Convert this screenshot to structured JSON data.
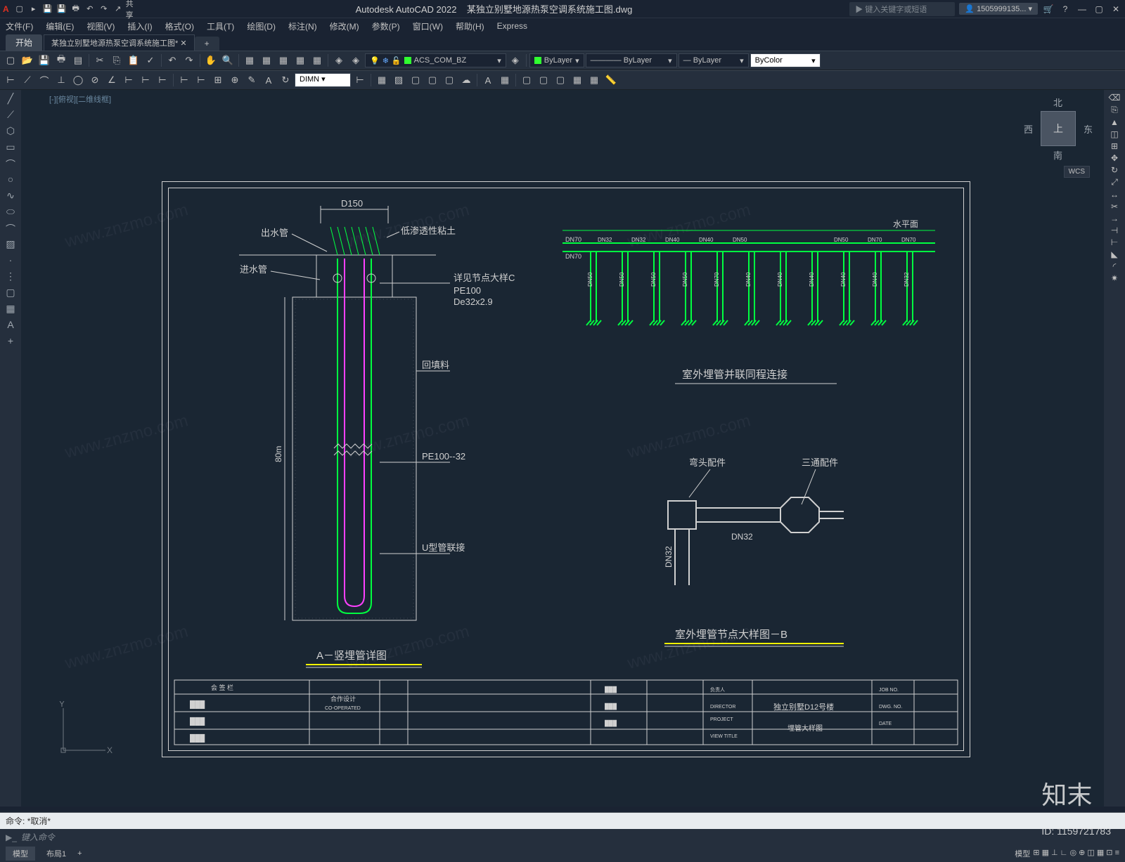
{
  "app": {
    "title": "Autodesk AutoCAD 2022",
    "filename": "某独立别墅地源热泵空调系统施工图.dwg",
    "share": "共享",
    "search_placeholder": "键入关键字或短语",
    "user": "1505999135...",
    "tab_start": "开始",
    "filetab": "某独立别墅地源热泵空调系统施工图*",
    "cmd_prefix": "命令:",
    "cmd_text": "*取消*",
    "cmd_input": "键入命令",
    "model_tab": "模型",
    "layout_tab": "布局1",
    "view_label": "[-][俯视][二维线框]"
  },
  "menus": [
    "文件(F)",
    "编辑(E)",
    "视图(V)",
    "插入(I)",
    "格式(O)",
    "工具(T)",
    "绘图(D)",
    "标注(N)",
    "修改(M)",
    "参数(P)",
    "窗口(W)",
    "帮助(H)",
    "Express"
  ],
  "layer": {
    "current": "ACS_COM_BZ",
    "color": "#30ff30",
    "bylayer1": "ByLayer",
    "bylayer2": "ByLayer",
    "bylayer3": "ByLayer",
    "bycolor": "ByColor",
    "dimstyle": "DIMN"
  },
  "viewcube": {
    "n": "北",
    "s": "南",
    "e": "东",
    "w": "西",
    "top": "上",
    "wcs": "WCS"
  },
  "drawing": {
    "border_color": "#d0d0d0",
    "green": "#00ff40",
    "magenta": "#ff40ff",
    "yellow": "#ffff00",
    "white": "#e0e0e0",
    "labels": {
      "d150": "D150",
      "outlet": "出水管",
      "inlet": "进水管",
      "clay": "低渗透性粘土",
      "detail_c": "详见节点大样C",
      "pe100": "PE100",
      "de32": "De32x2.9",
      "backfill": "回填料",
      "depth": "80m",
      "pe100_32": "PE100--32",
      "ubend": "U型管联接",
      "title_a": "A－竖埋管详图",
      "water_level": "水平面",
      "parallel_title": "室外埋管并联同程连接",
      "elbow": "弯头配件",
      "tee": "三通配件",
      "dn32": "DN32",
      "dn32v": "DN32",
      "title_b": "室外埋管节点大样图－B",
      "dn70": "DN70"
    },
    "header_pipes": [
      "DN32",
      "DN32",
      "DN40",
      "DN40",
      "DN50",
      "",
      "",
      "DN50",
      "DN70",
      "DN70"
    ],
    "drop_pipes": [
      "DN50",
      "DN50",
      "DN50",
      "DN50",
      "DN70",
      "DN40",
      "DN40",
      "DN40",
      "DN40",
      "DN40",
      "DN32"
    ],
    "titleblock": {
      "coop": "合作设计",
      "coop_en": "CO-OPERATED",
      "proj": "独立别墅D12号楼",
      "sheet": "埋管大样图",
      "director": "DIRECTOR",
      "project": "PROJECT",
      "view": "VIEW TITLE",
      "jobno": "JOB NO.",
      "dwgno": "DWG. NO.",
      "date": "DATE"
    }
  },
  "watermark": "知末网 www.znzmo.com",
  "brand": "知末",
  "brand_id": "ID: 1159721783",
  "colors": {
    "bg": "#1a2332",
    "canvas": "#1a2633",
    "panel": "#252f3d",
    "border": "#3a4452"
  }
}
